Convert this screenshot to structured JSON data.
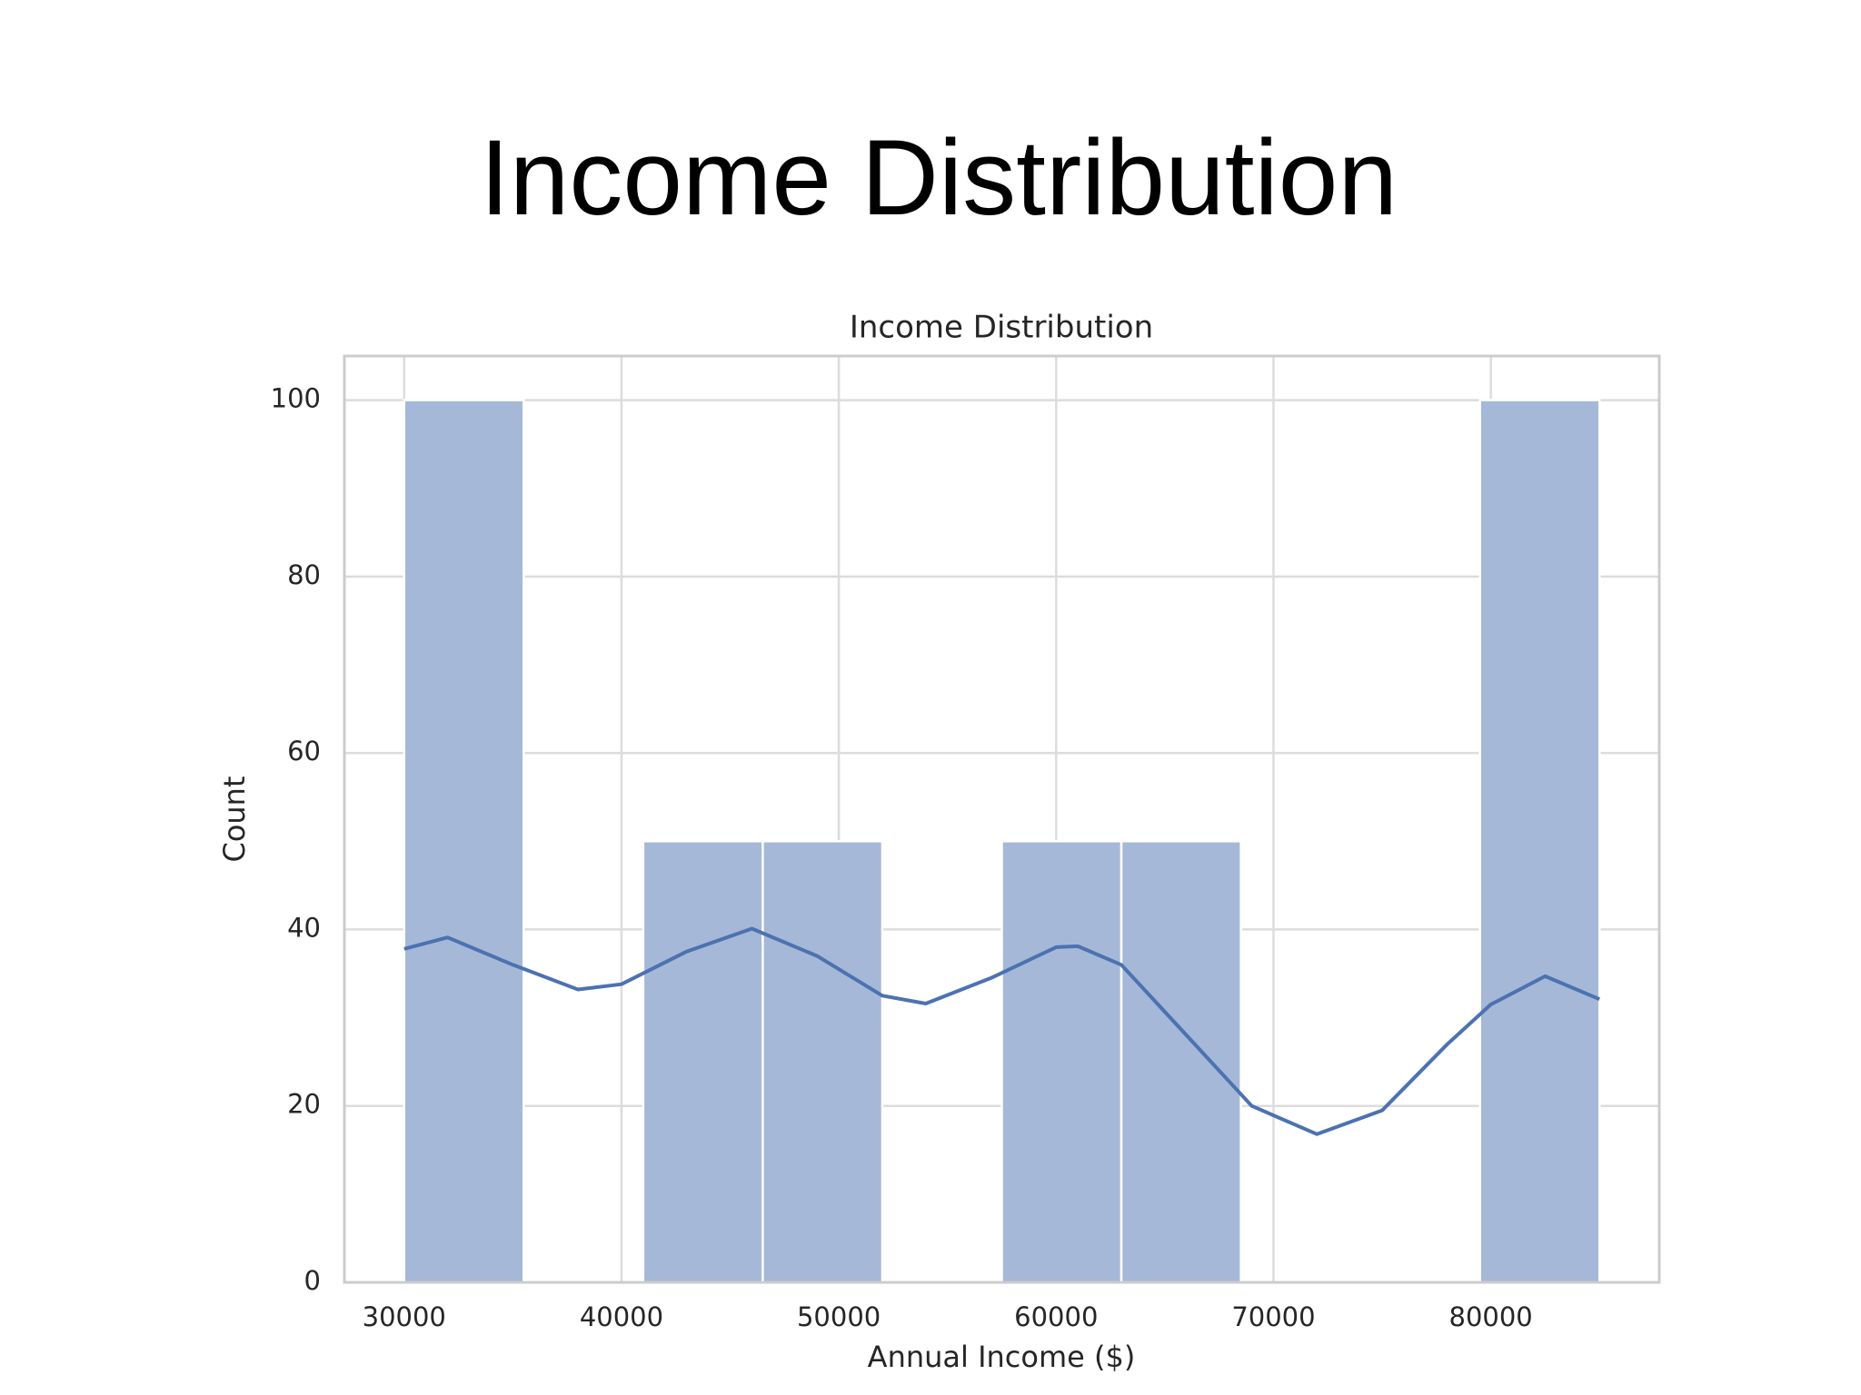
{
  "slide_title": "Income Distribution",
  "chart_data": {
    "type": "histogram",
    "title": "Income Distribution",
    "x_label": "Annual Income ($)",
    "y_label": "Count",
    "bins": [
      30000,
      35500,
      41000,
      46500,
      52000,
      57500,
      63000,
      68500,
      74000,
      79500,
      85000
    ],
    "counts": [
      100,
      0,
      50,
      50,
      0,
      50,
      50,
      0,
      0,
      100
    ],
    "color": "#a5b8d8",
    "edge_color": "#ffffff",
    "kde": {
      "color": "#4c72b0",
      "x": [
        30000,
        32000,
        35000,
        38000,
        40000,
        43000,
        46000,
        49000,
        52000,
        54000,
        57000,
        60000,
        61000,
        63000,
        66000,
        69000,
        72000,
        75000,
        78000,
        80000,
        82500,
        85000
      ],
      "values": [
        37.8,
        39.1,
        36,
        33.2,
        33.8,
        37.5,
        40.1,
        37,
        32.5,
        31.6,
        34.5,
        38,
        38.1,
        36,
        28,
        20,
        16.8,
        19.5,
        27,
        31.5,
        34.7,
        32.1
      ]
    },
    "xlim": [
      27250,
      87750
    ],
    "ylim": [
      0,
      105
    ],
    "xticks": [
      30000,
      40000,
      50000,
      60000,
      70000,
      80000
    ],
    "yticks": [
      0,
      20,
      40,
      60,
      80,
      100
    ],
    "grid": true
  }
}
